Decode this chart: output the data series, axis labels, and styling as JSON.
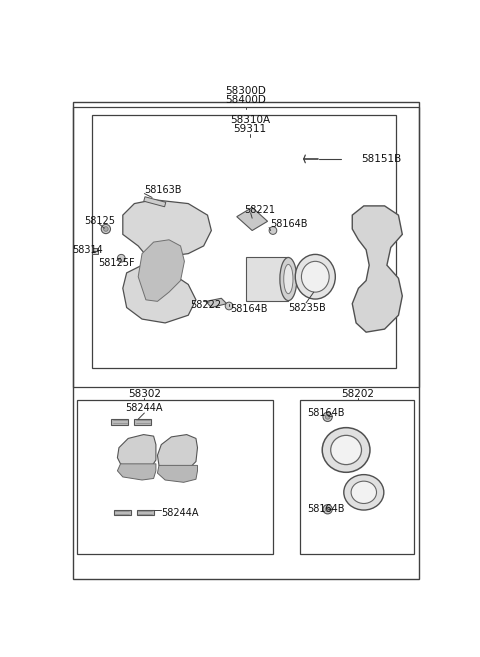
{
  "bg_color": "#ffffff",
  "lc": "#404040",
  "fig_w": 4.8,
  "fig_h": 6.57,
  "dpi": 100,
  "xlim": [
    0,
    480
  ],
  "ylim": [
    0,
    657
  ]
}
